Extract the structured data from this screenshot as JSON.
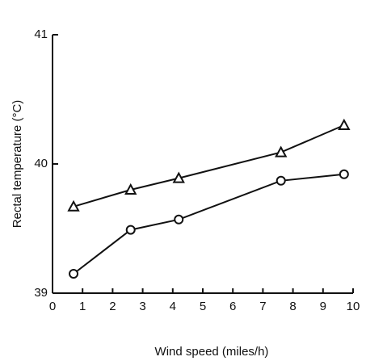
{
  "chart_data": {
    "type": "line",
    "xlabel": "Wind speed (miles/h)",
    "ylabel": "Rectal temperature (°C)",
    "x": [
      0.7,
      2.6,
      4.2,
      7.6,
      9.7
    ],
    "series": [
      {
        "color": "#111111",
        "marker": "triangle",
        "values": [
          39.67,
          39.8,
          39.89,
          40.09,
          40.3
        ]
      },
      {
        "color": "#111111",
        "marker": "circle",
        "values": [
          39.15,
          39.49,
          39.57,
          39.87,
          39.92
        ]
      }
    ],
    "xlim": [
      0,
      10
    ],
    "xticks": [
      0,
      1,
      2,
      3,
      4,
      5,
      6,
      7,
      8,
      9,
      10
    ],
    "ylim": [
      39,
      41
    ],
    "yticks": [
      39,
      40,
      41
    ]
  }
}
